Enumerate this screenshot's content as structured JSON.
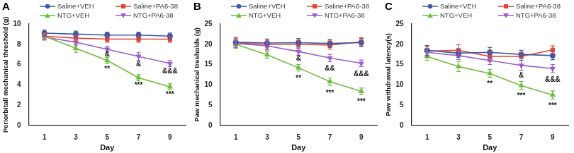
{
  "chart_data": [
    {
      "type": "line",
      "title": "A",
      "x_label": "Day",
      "y_label": "Periorbitall mechanical threshold (g)",
      "categories": [
        1,
        3,
        5,
        7,
        9
      ],
      "ylim": [
        0,
        10
      ],
      "yticks": [
        0,
        2,
        4,
        6,
        8,
        10
      ],
      "grid": false,
      "legend": "top",
      "series": [
        {
          "name": "Saline+VEH",
          "color": "#3a5aa8",
          "marker": "circle",
          "values": [
            9.1,
            9.0,
            8.9,
            8.9,
            8.8
          ],
          "errors": [
            0.3,
            0.3,
            0.3,
            0.3,
            0.3
          ]
        },
        {
          "name": "NTG+VEH",
          "color": "#6cbf3e",
          "marker": "triangle",
          "values": [
            8.8,
            7.6,
            6.4,
            4.7,
            3.8
          ],
          "errors": [
            0.3,
            0.4,
            0.3,
            0.3,
            0.3
          ]
        },
        {
          "name": "Saline+PA6-38",
          "color": "#e8432d",
          "marker": "square",
          "values": [
            8.8,
            8.6,
            8.5,
            8.5,
            8.5
          ],
          "errors": [
            0.3,
            0.3,
            0.3,
            0.3,
            0.3
          ]
        },
        {
          "name": "NTG+PA6-38",
          "color": "#9b5fc9",
          "marker": "triangle-down",
          "values": [
            8.7,
            8.2,
            7.5,
            6.8,
            6.1
          ],
          "errors": [
            0.3,
            0.3,
            0.3,
            0.4,
            0.3
          ]
        }
      ],
      "annotations": [
        {
          "x": 5,
          "y": 7.0,
          "text": "&"
        },
        {
          "x": 5,
          "y": 5.5,
          "text": "**"
        },
        {
          "x": 7,
          "y": 6.0,
          "text": "&"
        },
        {
          "x": 7,
          "y": 3.9,
          "text": "***"
        },
        {
          "x": 9,
          "y": 5.3,
          "text": "&&&"
        },
        {
          "x": 9,
          "y": 3.0,
          "text": "***"
        }
      ]
    },
    {
      "type": "line",
      "title": "B",
      "x_label": "Day",
      "y_label": "Paw mechanical tresholds (g)",
      "categories": [
        1,
        3,
        5,
        7,
        9
      ],
      "ylim": [
        0,
        25
      ],
      "yticks": [
        0,
        5,
        10,
        15,
        20,
        25
      ],
      "grid": false,
      "legend": "top",
      "series": [
        {
          "name": "Saline+VEH",
          "color": "#3a5aa8",
          "marker": "circle",
          "values": [
            20.5,
            20.3,
            20.4,
            20.2,
            20.4
          ],
          "errors": [
            1.2,
            1.0,
            1.0,
            1.0,
            1.0
          ]
        },
        {
          "name": "NTG+VEH",
          "color": "#6cbf3e",
          "marker": "triangle",
          "values": [
            20.0,
            17.4,
            14.2,
            10.8,
            8.4
          ],
          "errors": [
            1.0,
            0.8,
            0.8,
            0.9,
            0.8
          ]
        },
        {
          "name": "Saline+PA6-38",
          "color": "#e8432d",
          "marker": "square",
          "values": [
            20.3,
            20.0,
            20.0,
            19.8,
            20.6
          ],
          "errors": [
            1.2,
            1.2,
            1.0,
            1.0,
            1.0
          ]
        },
        {
          "name": "NTG+PA6-38",
          "color": "#9b5fc9",
          "marker": "triangle-down",
          "values": [
            20.2,
            19.6,
            18.2,
            16.6,
            15.3
          ],
          "errors": [
            1.0,
            1.0,
            0.9,
            0.9,
            0.8
          ]
        }
      ],
      "annotations": [
        {
          "x": 5,
          "y": 16.4,
          "text": "&"
        },
        {
          "x": 5,
          "y": 11.6,
          "text": "**"
        },
        {
          "x": 7,
          "y": 14.0,
          "text": "&&"
        },
        {
          "x": 7,
          "y": 8.0,
          "text": "***"
        },
        {
          "x": 9,
          "y": 12.6,
          "text": "&&&"
        },
        {
          "x": 9,
          "y": 5.8,
          "text": "***"
        }
      ]
    },
    {
      "type": "line",
      "title": "C",
      "x_label": "Day",
      "y_label": "Paw withdrawal latency(s)",
      "categories": [
        1,
        3,
        5,
        7,
        9
      ],
      "ylim": [
        0,
        25
      ],
      "yticks": [
        0,
        5,
        10,
        15,
        20,
        25
      ],
      "grid": false,
      "legend": "top",
      "series": [
        {
          "name": "Saline+VEH",
          "color": "#3a5aa8",
          "marker": "circle",
          "values": [
            18.5,
            17.8,
            18.0,
            17.5,
            17.2
          ],
          "errors": [
            1.2,
            1.0,
            1.2,
            1.0,
            1.0
          ]
        },
        {
          "name": "NTG+VEH",
          "color": "#6cbf3e",
          "marker": "triangle",
          "values": [
            17.0,
            14.5,
            12.8,
            9.8,
            7.5
          ],
          "errors": [
            1.0,
            1.2,
            1.0,
            1.0,
            1.0
          ]
        },
        {
          "name": "Saline+PA6-38",
          "color": "#e8432d",
          "marker": "square",
          "values": [
            18.3,
            18.5,
            17.0,
            17.0,
            18.6
          ],
          "errors": [
            1.2,
            1.4,
            1.2,
            1.0,
            1.0
          ]
        },
        {
          "name": "NTG+PA6-38",
          "color": "#9b5fc9",
          "marker": "triangle-down",
          "values": [
            18.0,
            17.2,
            16.0,
            14.8,
            14.0
          ],
          "errors": [
            1.0,
            1.0,
            1.0,
            1.2,
            1.0
          ]
        }
      ],
      "annotations": [
        {
          "x": 5,
          "y": 10.2,
          "text": "**"
        },
        {
          "x": 7,
          "y": 12.2,
          "text": "&"
        },
        {
          "x": 7,
          "y": 7.2,
          "text": "***"
        },
        {
          "x": 9,
          "y": 11.2,
          "text": "&&&"
        },
        {
          "x": 9,
          "y": 4.8,
          "text": "***"
        }
      ]
    }
  ]
}
